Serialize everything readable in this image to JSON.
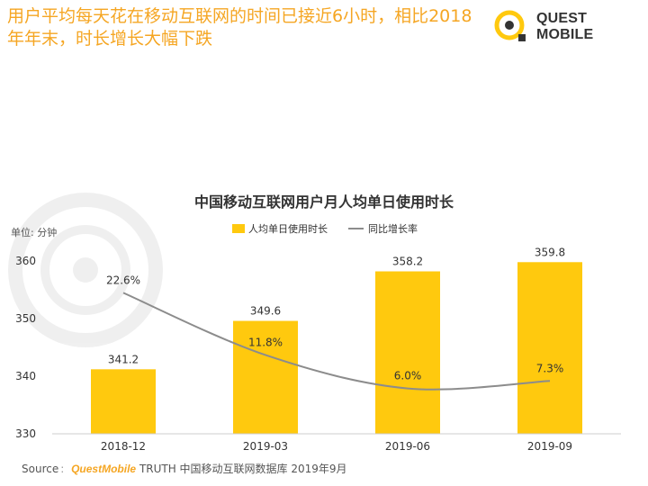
{
  "headline": "用户平均每天花在移动互联网的时间已接近6小时，相比2018年年末，时长增长大幅下跌",
  "logo": {
    "text": "QUEST MOBILE"
  },
  "source": {
    "label": "Source",
    "brand": "QuestMobile",
    "suffix": "TRUTH 中国移动互联网数据库 2019年9月"
  },
  "colors": {
    "accent": "#f5a623",
    "bar": "#ffc90e",
    "line": "#8c8c8c",
    "text": "#333333",
    "axis": "#cccccc"
  },
  "chart_data": {
    "type": "bar",
    "title": "中国移动互联网用户月人均单日使用时长",
    "unit_label": "单位: 分钟",
    "categories": [
      "2018-12",
      "2019-03",
      "2019-06",
      "2019-09"
    ],
    "ylim": [
      330,
      360
    ],
    "yticks": [
      330,
      340,
      350,
      360
    ],
    "legend_position": "top",
    "grid": false,
    "series": [
      {
        "name": "人均单日使用时长",
        "kind": "bar",
        "values": [
          341.2,
          349.6,
          358.2,
          359.8
        ],
        "labels": [
          "341.2",
          "349.6",
          "358.2",
          "359.8"
        ]
      },
      {
        "name": "同比增长率",
        "kind": "line",
        "values": [
          22.6,
          11.8,
          6.0,
          7.3
        ],
        "labels": [
          "22.6%",
          "11.8%",
          "6.0%",
          "7.3%"
        ],
        "unit": "%"
      }
    ]
  }
}
